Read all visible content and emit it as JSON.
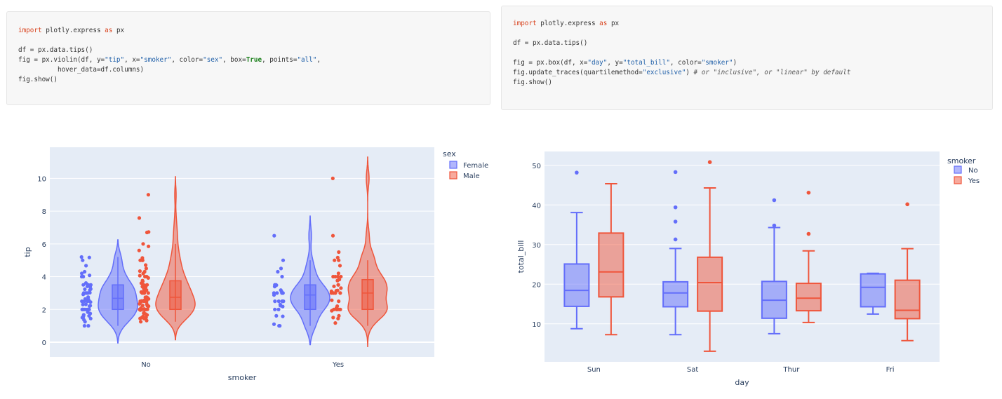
{
  "code_left": {
    "lines": [
      [
        {
          "t": "import",
          "c": "kw"
        },
        {
          "t": " plotly.express ",
          "c": ""
        },
        {
          "t": "as",
          "c": "kw"
        },
        {
          "t": " px",
          "c": ""
        }
      ],
      [],
      [
        {
          "t": "df = px.data.tips()",
          "c": ""
        }
      ],
      [
        {
          "t": "fig = px.violin(df, y=",
          "c": ""
        },
        {
          "t": "\"tip\"",
          "c": "str"
        },
        {
          "t": ", x=",
          "c": ""
        },
        {
          "t": "\"smoker\"",
          "c": "str"
        },
        {
          "t": ", color=",
          "c": ""
        },
        {
          "t": "\"sex\"",
          "c": "str"
        },
        {
          "t": ", box=",
          "c": ""
        },
        {
          "t": "True",
          "c": "bool"
        },
        {
          "t": ", points=",
          "c": ""
        },
        {
          "t": "\"all\"",
          "c": "str"
        },
        {
          "t": ",",
          "c": ""
        }
      ],
      [
        {
          "t": "          hover_data=df.columns)",
          "c": ""
        }
      ],
      [
        {
          "t": "fig.show()",
          "c": ""
        }
      ]
    ]
  },
  "code_right": {
    "lines": [
      [
        {
          "t": "import",
          "c": "kw"
        },
        {
          "t": " plotly.express ",
          "c": ""
        },
        {
          "t": "as",
          "c": "kw"
        },
        {
          "t": " px",
          "c": ""
        }
      ],
      [],
      [
        {
          "t": "df = px.data.tips()",
          "c": ""
        }
      ],
      [],
      [
        {
          "t": "fig = px.box(df, x=",
          "c": ""
        },
        {
          "t": "\"day\"",
          "c": "str"
        },
        {
          "t": ", y=",
          "c": ""
        },
        {
          "t": "\"total_bill\"",
          "c": "str"
        },
        {
          "t": ", color=",
          "c": ""
        },
        {
          "t": "\"smoker\"",
          "c": "str"
        },
        {
          "t": ")",
          "c": ""
        }
      ],
      [
        {
          "t": "fig.update_traces(quartilemethod=",
          "c": ""
        },
        {
          "t": "\"exclusive\"",
          "c": "str"
        },
        {
          "t": ") ",
          "c": ""
        },
        {
          "t": "# or \"inclusive\", or \"linear\" by default",
          "c": "cm"
        }
      ],
      [
        {
          "t": "fig.show()",
          "c": ""
        }
      ]
    ]
  },
  "colors": {
    "blue": "#636efa",
    "red": "#ef553b",
    "plot_bg": "#e5ecf6",
    "grid": "#ffffff",
    "text": "#2a3f5f"
  },
  "chart_data": [
    {
      "type": "violin",
      "title": "",
      "xlabel": "smoker",
      "ylabel": "tip",
      "categories": [
        "No",
        "Yes"
      ],
      "yticks": [
        0,
        2,
        4,
        6,
        8,
        10
      ],
      "ylim": [
        -0.9,
        11.9
      ],
      "grid": true,
      "legend": {
        "title": "sex",
        "placement": "top-right",
        "entries": [
          "Female",
          "Male"
        ]
      },
      "series": [
        {
          "name": "Female",
          "color": "#636efa",
          "groups": [
            {
              "category": "No",
              "min": 1.0,
              "q1": 2.0,
              "median": 2.68,
              "q3": 3.5,
              "max": 5.2,
              "kde_min": -0.05,
              "kde_max": 6.25,
              "points": [
                1.0,
                1.0,
                1.25,
                1.36,
                1.44,
                1.5,
                1.5,
                1.58,
                1.61,
                1.67,
                1.75,
                1.83,
                2.0,
                2.0,
                2.0,
                2.0,
                2.0,
                2.0,
                2.0,
                2.2,
                2.23,
                2.3,
                2.31,
                2.45,
                2.5,
                2.5,
                2.5,
                2.54,
                2.6,
                2.64,
                2.75,
                2.92,
                3.0,
                3.0,
                3.0,
                3.0,
                3.02,
                3.18,
                3.23,
                3.25,
                3.39,
                3.41,
                3.48,
                3.5,
                3.5,
                3.5,
                3.61,
                4.0,
                4.0,
                4.08,
                4.2,
                4.3,
                4.67,
                5.0,
                5.2,
                5.17
              ]
            },
            {
              "category": "Yes",
              "min": 1.0,
              "q1": 2.0,
              "median": 2.88,
              "q3": 3.5,
              "max": 5.0,
              "kde_min": -0.15,
              "kde_max": 7.7,
              "points": [
                1.0,
                1.0,
                1.1,
                1.58,
                1.61,
                2.0,
                2.0,
                2.18,
                2.23,
                2.3,
                2.5,
                2.5,
                2.5,
                2.5,
                2.5,
                2.5,
                2.88,
                3.0,
                3.0,
                3.0,
                3.0,
                3.09,
                3.18,
                3.4,
                3.48,
                3.5,
                3.5,
                4.0,
                4.3,
                4.5,
                5.0,
                6.5
              ]
            }
          ]
        },
        {
          "name": "Male",
          "color": "#ef553b",
          "groups": [
            {
              "category": "No",
              "min": 1.25,
              "q1": 2.0,
              "median": 2.74,
              "q3": 3.75,
              "max": 6.0,
              "kde_min": 0.15,
              "kde_max": 10.1,
              "points": [
                1.25,
                1.32,
                1.44,
                1.45,
                1.5,
                1.5,
                1.57,
                1.66,
                1.71,
                1.76,
                1.8,
                1.96,
                2.0,
                2.0,
                2.0,
                2.0,
                2.0,
                2.01,
                2.03,
                2.09,
                2.2,
                2.23,
                2.24,
                2.31,
                2.34,
                2.45,
                2.47,
                2.5,
                2.5,
                2.52,
                2.55,
                2.56,
                2.6,
                2.64,
                2.71,
                2.74,
                2.75,
                3.0,
                3.0,
                3.0,
                3.0,
                3.06,
                3.12,
                3.15,
                3.18,
                3.27,
                3.35,
                3.39,
                3.48,
                3.5,
                3.5,
                3.6,
                3.71,
                3.76,
                3.92,
                4.0,
                4.0,
                4.06,
                4.19,
                4.3,
                4.34,
                4.5,
                4.71,
                5.0,
                5.0,
                5.0,
                5.14,
                5.6,
                5.85,
                6.0,
                6.7,
                6.73,
                7.58,
                9.0
              ]
            },
            {
              "category": "Yes",
              "min": 1.0,
              "q1": 2.0,
              "median": 3.0,
              "q3": 3.82,
              "max": 5.0,
              "kde_min": -0.3,
              "kde_max": 11.3,
              "points": [
                1.17,
                1.44,
                1.5,
                1.61,
                1.92,
                2.0,
                2.0,
                2.0,
                2.0,
                2.0,
                2.0,
                2.03,
                2.09,
                2.2,
                2.5,
                2.56,
                3.0,
                3.0,
                3.0,
                3.0,
                3.11,
                3.14,
                3.16,
                3.3,
                3.41,
                3.5,
                3.5,
                3.76,
                3.82,
                4.0,
                4.0,
                4.0,
                4.0,
                4.2,
                4.67,
                5.0,
                5.0,
                5.16,
                5.5,
                6.5,
                10.0
              ]
            }
          ]
        }
      ]
    },
    {
      "type": "box",
      "title": "",
      "xlabel": "day",
      "ylabel": "total_bill",
      "categories": [
        "Sun",
        "Sat",
        "Thur",
        "Fri"
      ],
      "yticks": [
        10,
        20,
        30,
        40,
        50
      ],
      "ylim": [
        0.4,
        53.5
      ],
      "grid": true,
      "legend": {
        "title": "smoker",
        "placement": "top-right",
        "entries": [
          "No",
          "Yes"
        ]
      },
      "series": [
        {
          "name": "No",
          "color": "#636efa",
          "boxes": [
            {
              "category": "Sun",
              "lower_fence": 8.77,
              "q1": 14.4,
              "median": 18.43,
              "q3": 25.1,
              "upper_fence": 38.07,
              "outliers": [
                48.17
              ]
            },
            {
              "category": "Sat",
              "lower_fence": 7.25,
              "q1": 14.3,
              "median": 17.8,
              "q3": 20.6,
              "upper_fence": 29.0,
              "outliers": [
                31.3,
                35.8,
                39.4,
                48.3
              ]
            },
            {
              "category": "Thur",
              "lower_fence": 7.51,
              "q1": 11.4,
              "median": 15.95,
              "q3": 20.7,
              "upper_fence": 34.3,
              "outliers": [
                34.8,
                41.2
              ]
            },
            {
              "category": "Fri",
              "lower_fence": 12.46,
              "q1": 14.3,
              "median": 19.2,
              "q3": 22.6,
              "upper_fence": 22.75,
              "outliers": []
            }
          ]
        },
        {
          "name": "Yes",
          "color": "#ef553b",
          "boxes": [
            {
              "category": "Sun",
              "lower_fence": 7.25,
              "q1": 16.8,
              "median": 23.1,
              "q3": 32.9,
              "upper_fence": 45.35,
              "outliers": []
            },
            {
              "category": "Sat",
              "lower_fence": 3.07,
              "q1": 13.2,
              "median": 20.4,
              "q3": 26.8,
              "upper_fence": 44.3,
              "outliers": [
                50.81
              ]
            },
            {
              "category": "Thur",
              "lower_fence": 10.34,
              "q1": 13.3,
              "median": 16.47,
              "q3": 20.2,
              "upper_fence": 28.4,
              "outliers": [
                32.7,
                43.1
              ]
            },
            {
              "category": "Fri",
              "lower_fence": 5.75,
              "q1": 11.3,
              "median": 13.4,
              "q3": 21.0,
              "upper_fence": 28.97,
              "outliers": [
                40.17
              ]
            }
          ]
        }
      ]
    }
  ]
}
